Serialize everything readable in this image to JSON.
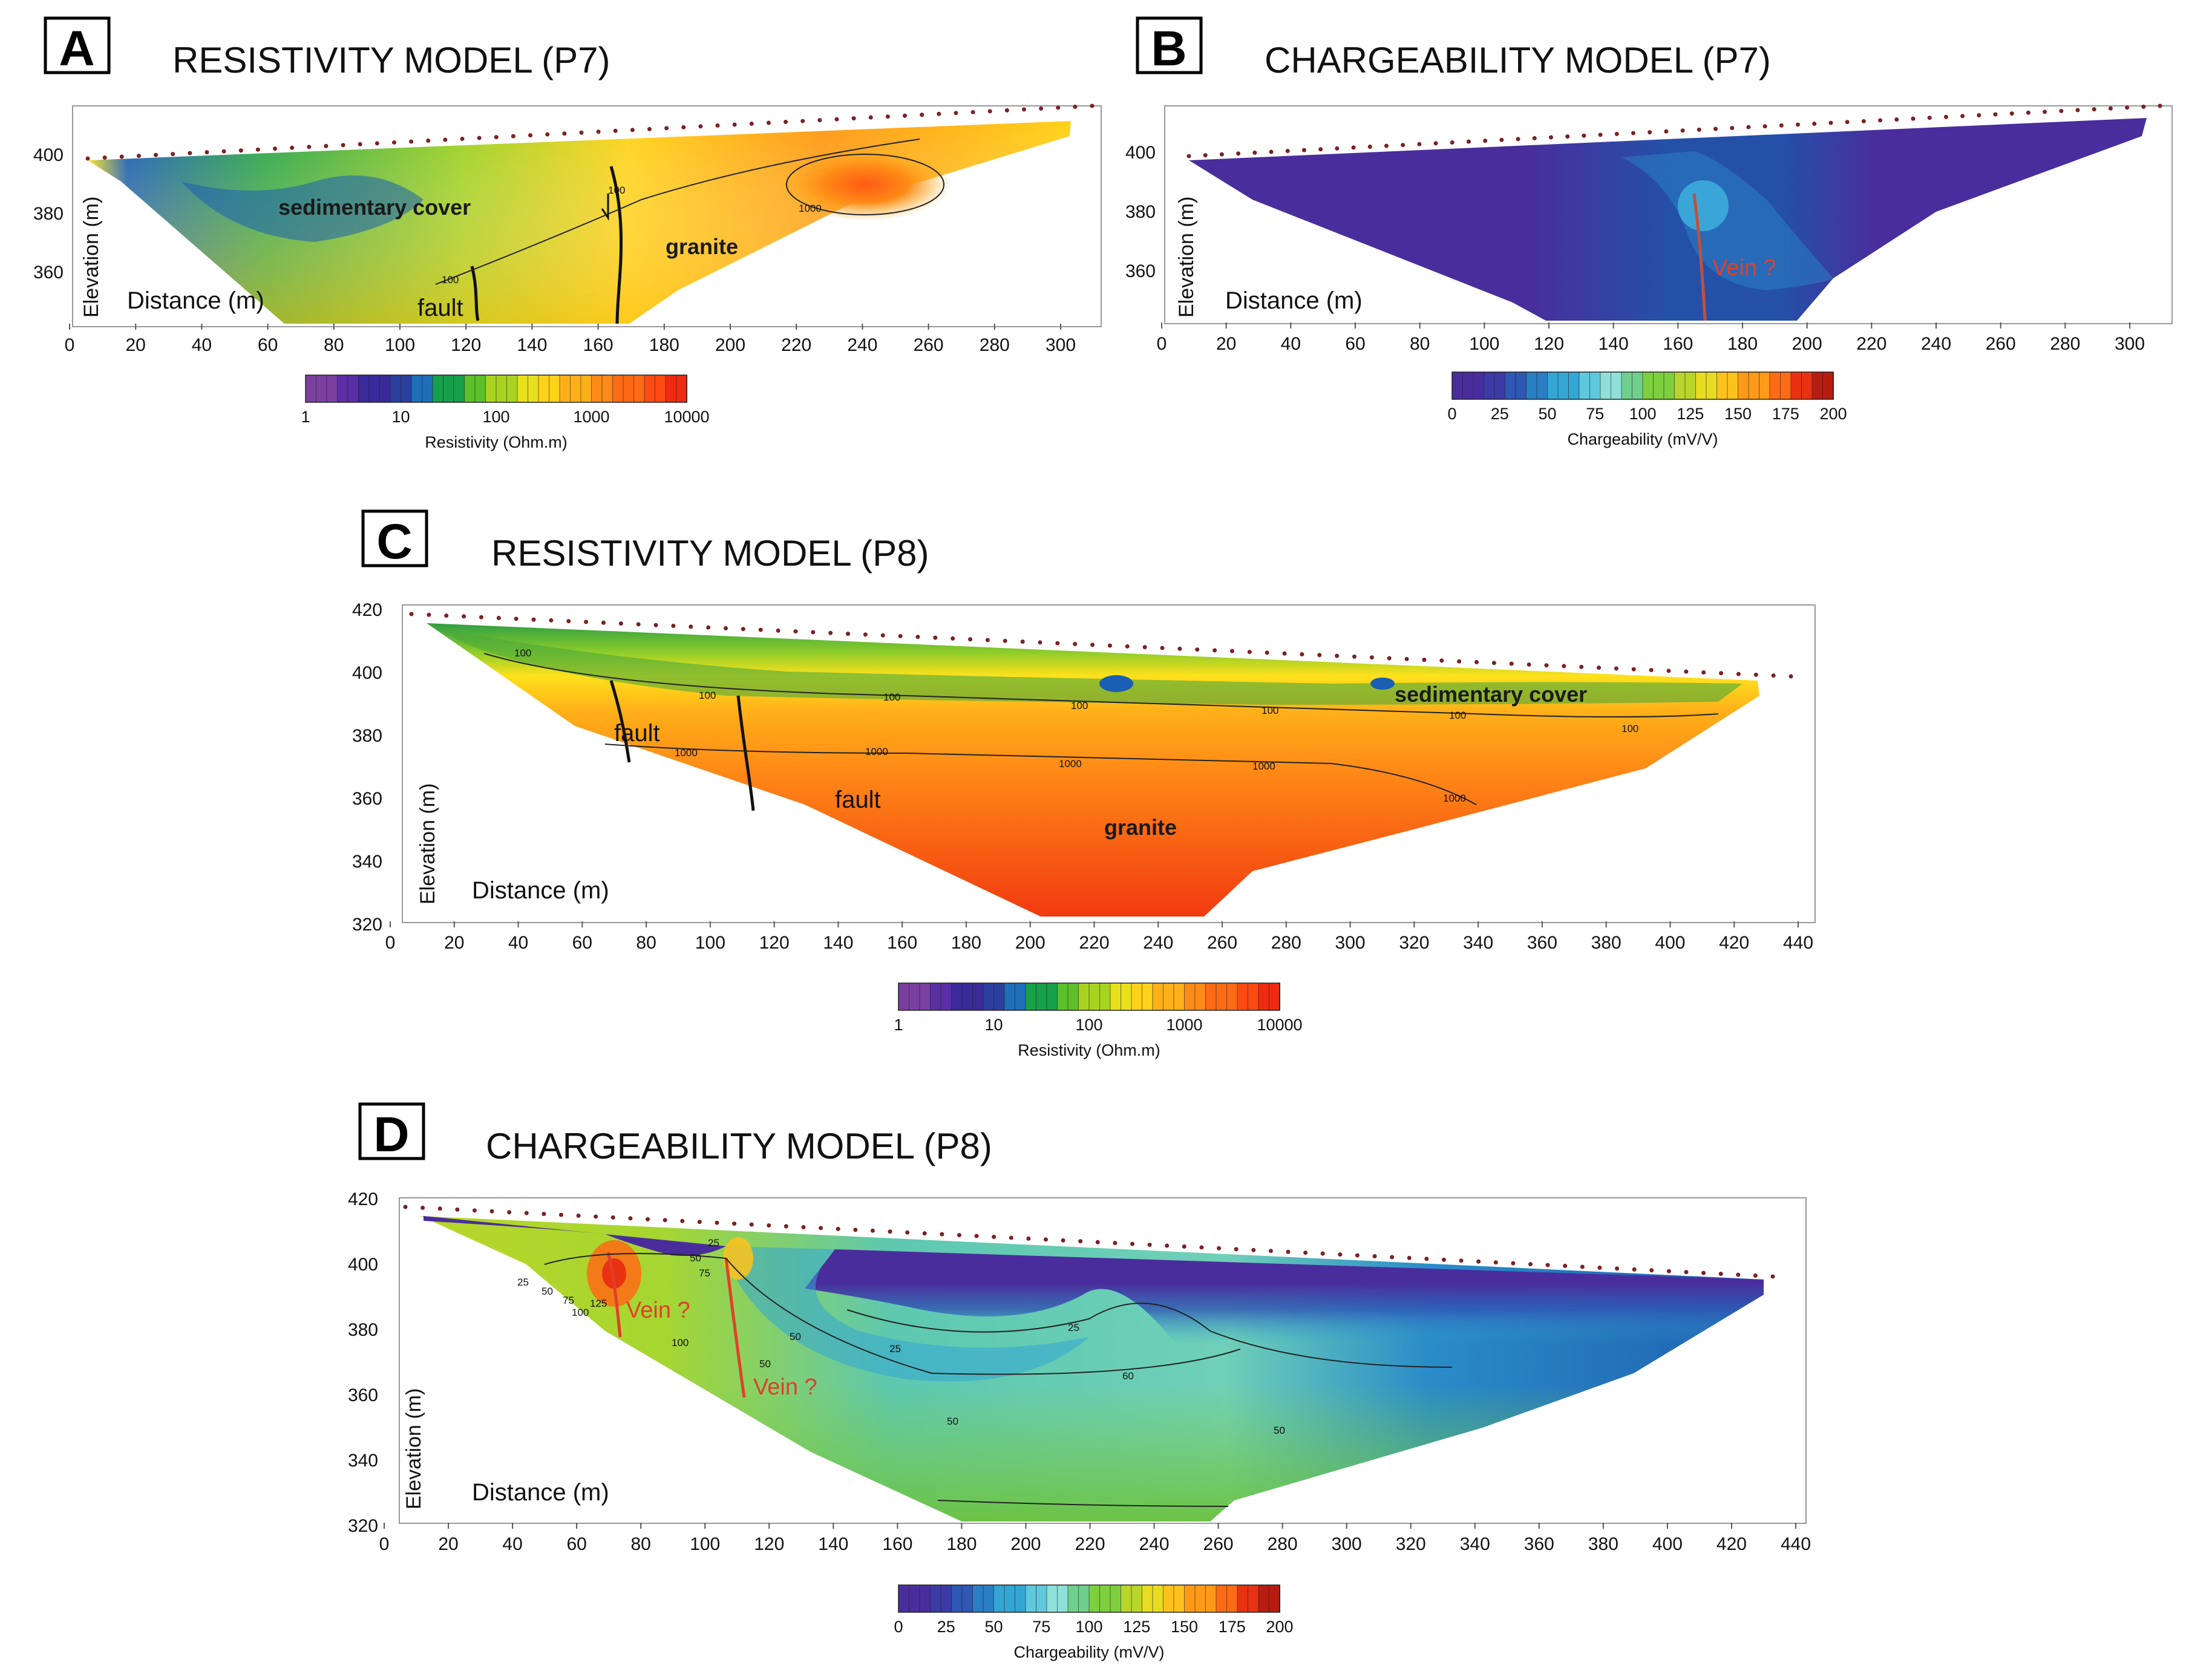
{
  "chart_data": [
    {
      "id": "A",
      "letter": "A",
      "type": "heatmap",
      "title": "RESISTIVITY MODEL (P7)",
      "xlabel": "Distance (m)",
      "ylabel": "Elevation (m)",
      "xlim": [
        0,
        315
      ],
      "ylim": [
        343,
        415
      ],
      "xticks": [
        "0",
        "20",
        "40",
        "60",
        "80",
        "100",
        "120",
        "140",
        "160",
        "180",
        "200",
        "220",
        "240",
        "260",
        "280",
        "300"
      ],
      "yticks": [
        "360",
        "380",
        "400"
      ],
      "annotations": [
        "sedimentary cover",
        "granite",
        "fault"
      ],
      "contour_labels": [
        "100",
        "1000",
        "100"
      ],
      "colorbar": {
        "label": "Resistivity (Ohm.m)",
        "ticks": [
          "1",
          "10",
          "100",
          "1000",
          "10000"
        ]
      },
      "vein_label": ""
    },
    {
      "id": "B",
      "letter": "B",
      "type": "heatmap",
      "title": "CHARGEABILITY MODEL (P7)",
      "xlabel": "Distance (m)",
      "ylabel": "Elevation (m)",
      "xlim": [
        0,
        315
      ],
      "ylim": [
        343,
        415
      ],
      "xticks": [
        "0",
        "20",
        "40",
        "60",
        "80",
        "100",
        "120",
        "140",
        "160",
        "180",
        "200",
        "220",
        "240",
        "260",
        "280",
        "300"
      ],
      "yticks": [
        "360",
        "380",
        "400"
      ],
      "annotations": [],
      "colorbar": {
        "label": "Chargeability (mV/V)",
        "ticks": [
          "0",
          "25",
          "50",
          "75",
          "100",
          "125",
          "150",
          "175",
          "200"
        ]
      },
      "vein_label": "Vein ?"
    },
    {
      "id": "C",
      "letter": "C",
      "type": "heatmap",
      "title": "RESISTIVITY MODEL (P8)",
      "xlabel": "Distance (m)",
      "ylabel": "Elevation (m)",
      "xlim": [
        0,
        440
      ],
      "ylim": [
        320,
        422
      ],
      "xticks": [
        "0",
        "20",
        "40",
        "60",
        "80",
        "100",
        "120",
        "140",
        "160",
        "180",
        "200",
        "220",
        "240",
        "260",
        "280",
        "300",
        "320",
        "340",
        "360",
        "380",
        "400",
        "420",
        "440"
      ],
      "yticks": [
        "320",
        "340",
        "360",
        "380",
        "400",
        "420"
      ],
      "annotations": [
        "sedimentary cover",
        "granite",
        "fault",
        "fault"
      ],
      "contour_labels": [
        "100",
        "100",
        "100",
        "100",
        "100",
        "100",
        "100",
        "1000",
        "1000",
        "1000",
        "1000",
        "1000"
      ],
      "colorbar": {
        "label": "Resistivity (Ohm.m)",
        "ticks": [
          "1",
          "10",
          "100",
          "1000",
          "10000"
        ]
      },
      "vein_label": ""
    },
    {
      "id": "D",
      "letter": "D",
      "type": "heatmap",
      "title": "CHARGEABILITY MODEL (P8)",
      "xlabel": "Distance (m)",
      "ylabel": "Elevation (m)",
      "xlim": [
        0,
        440
      ],
      "ylim": [
        320,
        422
      ],
      "xticks": [
        "0",
        "20",
        "40",
        "60",
        "80",
        "100",
        "120",
        "140",
        "160",
        "180",
        "200",
        "220",
        "240",
        "260",
        "280",
        "300",
        "320",
        "340",
        "360",
        "380",
        "400",
        "420",
        "440"
      ],
      "yticks": [
        "320",
        "340",
        "360",
        "380",
        "400",
        "420"
      ],
      "annotations": [],
      "contour_labels": [
        "25",
        "50",
        "75",
        "100",
        "125",
        "100",
        "75",
        "50",
        "25",
        "25",
        "50",
        "50",
        "25",
        "50",
        "60",
        "50"
      ],
      "colorbar": {
        "label": "Chargeability (mV/V)",
        "ticks": [
          "0",
          "25",
          "50",
          "75",
          "100",
          "125",
          "150",
          "175",
          "200"
        ]
      },
      "vein_label": "Vein ?"
    }
  ],
  "colors": {
    "resistivity_scale": [
      "#7b3fa0",
      "#5a2ea5",
      "#3a2a9a",
      "#2b3f9e",
      "#1d6fb8",
      "#16a04a",
      "#5bc02a",
      "#a8d420",
      "#e8e01c",
      "#ffd21a",
      "#ffb019",
      "#ff8a17",
      "#ff6a14",
      "#ff4a12",
      "#f02a10"
    ],
    "chargeability_scale": [
      "#4a2d9c",
      "#3c3aa6",
      "#2f57b4",
      "#2a7ec4",
      "#33a6d4",
      "#5ec8dc",
      "#8ee0d8",
      "#6fcf8c",
      "#7ecf3e",
      "#b8d62a",
      "#e8dc22",
      "#ffc21c",
      "#ff9a18",
      "#ff6a14",
      "#e83212",
      "#b81c10"
    ],
    "electrode_dot": "#7a2222",
    "vein_line": "#e0402a"
  }
}
